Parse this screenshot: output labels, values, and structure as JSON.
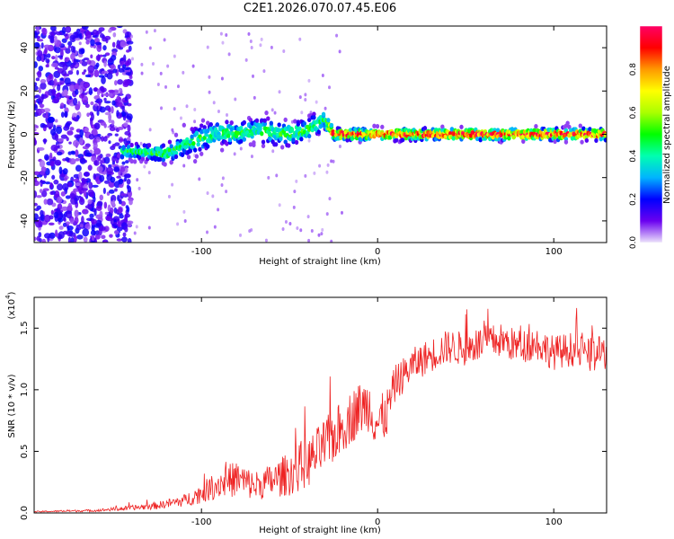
{
  "title": "C2E1.2026.070.07.45.E06",
  "chart_data": [
    {
      "type": "heatmap",
      "title": "C2E1.2026.070.07.45.E06",
      "xlabel": "Height of straight line (km)",
      "ylabel": "Frequency (Hz)",
      "xlim": [
        -195,
        130
      ],
      "ylim": [
        -50,
        50
      ],
      "x_ticks": [
        -100,
        0,
        100
      ],
      "y_ticks": [
        -40,
        -20,
        0,
        20,
        40
      ],
      "colorbar": {
        "label": "Normalized spectral amplitude",
        "range": [
          0.0,
          1.0
        ],
        "ticks": [
          0.0,
          0.2,
          0.4,
          0.6,
          0.8
        ],
        "colors": [
          "#ece2fb",
          "#6a00f0",
          "#0000ff",
          "#00b4ff",
          "#00ffb0",
          "#00ff00",
          "#aaff00",
          "#ffff00",
          "#ff9900",
          "#ff0000",
          "#ff0066"
        ]
      },
      "signal_track": {
        "x": [
          -145,
          -130,
          -120,
          -110,
          -100,
          -90,
          -80,
          -70,
          -60,
          -50,
          -40,
          -30,
          -25,
          -10,
          0,
          25,
          50,
          75,
          100,
          130
        ],
        "center_freq": [
          -8,
          -8,
          -9,
          -5,
          -2,
          1,
          0,
          2,
          1,
          0,
          2,
          7,
          0,
          0,
          0,
          0,
          0,
          0,
          0,
          0
        ],
        "half_width": [
          4,
          4,
          5,
          6,
          7,
          6,
          6,
          6,
          7,
          6,
          6,
          6,
          3,
          3,
          3,
          3,
          3,
          3,
          3,
          3
        ],
        "peak_amplitude": [
          0.45,
          0.5,
          0.5,
          0.45,
          0.5,
          0.45,
          0.5,
          0.45,
          0.5,
          0.5,
          0.5,
          0.45,
          0.95,
          0.95,
          0.9,
          0.95,
          0.95,
          0.95,
          0.95,
          0.95
        ]
      },
      "noise_region": {
        "x_range": [
          -195,
          -140
        ],
        "amplitude_range": [
          0.05,
          0.2
        ]
      }
    },
    {
      "type": "line",
      "xlabel": "Height of straight line (km)",
      "ylabel": "SNR (10 * v/v)",
      "y_scale_label": "(x10",
      "y_scale_exp": "4",
      "xlim": [
        -195,
        130
      ],
      "ylim": [
        0,
        1.75
      ],
      "x_ticks": [
        -100,
        0,
        100
      ],
      "y_ticks": [
        0.0,
        0.5,
        1.0,
        1.5
      ],
      "y_tick_labels": [
        "0.0",
        "0.5",
        "1.0",
        "1.5"
      ],
      "series": [
        {
          "name": "SNR",
          "color": "#ee2222",
          "x": [
            -195,
            -160,
            -140,
            -125,
            -110,
            -100,
            -90,
            -80,
            -70,
            -60,
            -50,
            -40,
            -30,
            -25,
            -20,
            -15,
            -10,
            -5,
            0,
            5,
            10,
            20,
            30,
            40,
            50,
            60,
            70,
            80,
            90,
            100,
            110,
            120,
            130
          ],
          "y": [
            0.01,
            0.02,
            0.04,
            0.06,
            0.1,
            0.16,
            0.24,
            0.28,
            0.22,
            0.26,
            0.32,
            0.4,
            0.55,
            0.62,
            0.7,
            0.78,
            0.85,
            0.88,
            0.72,
            0.8,
            1.05,
            1.2,
            1.28,
            1.35,
            1.33,
            1.38,
            1.4,
            1.35,
            1.38,
            1.3,
            1.33,
            1.28,
            1.3
          ],
          "noise": [
            0.005,
            0.01,
            0.02,
            0.03,
            0.05,
            0.08,
            0.12,
            0.15,
            0.12,
            0.14,
            0.18,
            0.2,
            0.22,
            0.22,
            0.22,
            0.22,
            0.22,
            0.22,
            0.22,
            0.2,
            0.15,
            0.14,
            0.14,
            0.14,
            0.14,
            0.14,
            0.14,
            0.14,
            0.14,
            0.14,
            0.14,
            0.14,
            0.14
          ]
        }
      ]
    }
  ]
}
